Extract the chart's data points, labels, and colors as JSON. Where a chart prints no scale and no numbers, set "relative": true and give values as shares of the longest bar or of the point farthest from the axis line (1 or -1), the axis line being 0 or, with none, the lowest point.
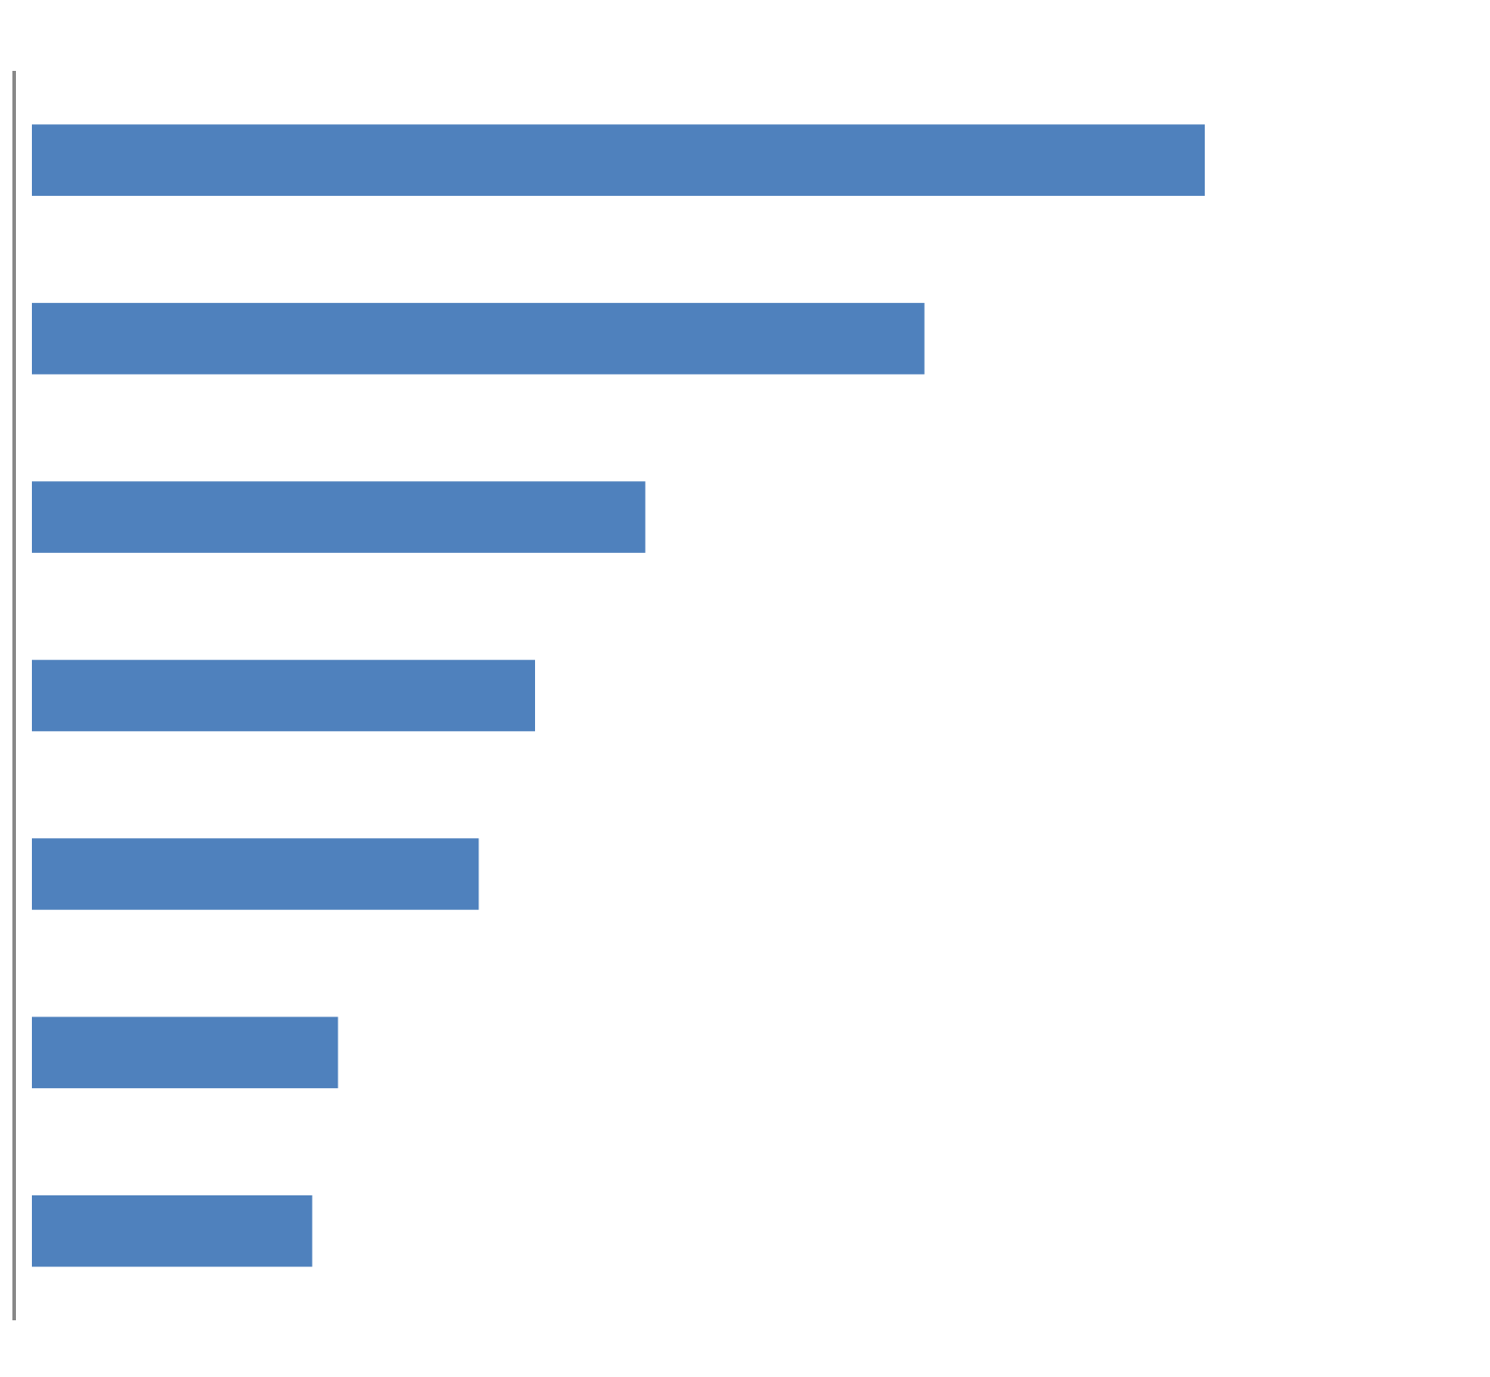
{
  "chart_data": {
    "type": "bar",
    "orientation": "horizontal",
    "relative": true,
    "categories": [
      null,
      null,
      null,
      null,
      null,
      null,
      null
    ],
    "values": [
      1,
      0.761,
      0.523,
      0.429,
      0.381,
      0.261,
      0.239
    ],
    "color": "#4f81bd"
  }
}
